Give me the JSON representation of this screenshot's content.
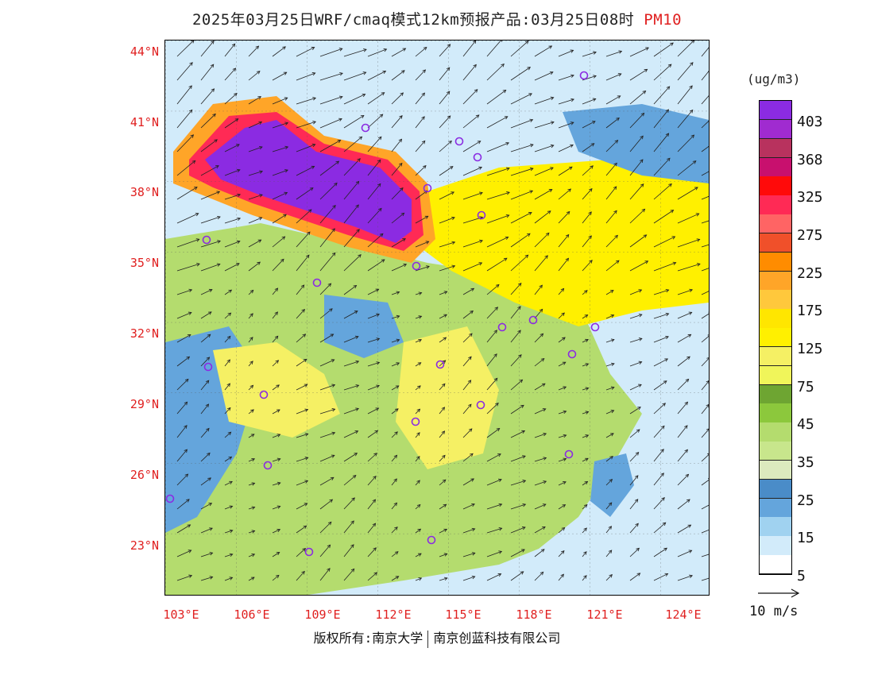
{
  "title": {
    "main": "2025年03月25日WRF/cmaq模式12km预报产品:03月25日08时",
    "species": "PM10"
  },
  "map": {
    "lat_labels": [
      "44°N",
      "41°N",
      "38°N",
      "35°N",
      "32°N",
      "29°N",
      "26°N",
      "23°N"
    ],
    "lon_labels": [
      "103°E",
      "106°E",
      "109°E",
      "112°E",
      "115°E",
      "118°E",
      "121°E",
      "124°E"
    ],
    "wind_flow": "southwest flow, stronger near the northern region",
    "station_marker": "purple-circle"
  },
  "colorbar": {
    "unit": "(ug/m3)",
    "levels": [
      {
        "color": "#8b2be2"
      },
      {
        "color": "#a02bd0"
      },
      {
        "color": "#b8325e"
      },
      {
        "color": "#c8106e"
      },
      {
        "color": "#ff0a0a"
      },
      {
        "color": "#ff2a55"
      },
      {
        "color": "#ff6464"
      },
      {
        "color": "#f0502a"
      },
      {
        "color": "#ff8c00"
      },
      {
        "color": "#ffa528"
      },
      {
        "color": "#ffc83c"
      },
      {
        "color": "#ffe600"
      },
      {
        "color": "#fff000"
      },
      {
        "color": "#f5f064"
      },
      {
        "color": "#f0f55a"
      },
      {
        "color": "#6ea532"
      },
      {
        "color": "#8cc83c"
      },
      {
        "color": "#b4dc6e"
      },
      {
        "color": "#c8e68c"
      },
      {
        "color": "#dceabe"
      },
      {
        "color": "#4a8cc8"
      },
      {
        "color": "#64a5dc"
      },
      {
        "color": "#a0d2f0"
      },
      {
        "color": "#d2ebfa"
      },
      {
        "color": "#ffffff"
      }
    ],
    "tick_labels": [
      "403",
      "368",
      "325",
      "275",
      "225",
      "175",
      "125",
      "75",
      "45",
      "35",
      "25",
      "15",
      "5"
    ]
  },
  "wind_reference": {
    "label": "10 m/s"
  },
  "copyright": {
    "left": "版权所有:南京大学",
    "right": "南京创蓝科技有限公司"
  },
  "colors": {
    "label_red": "#e02020",
    "extreme_purple": "#8b2be2",
    "high_red": "#ff2a55",
    "mid_yellow": "#fff000",
    "green": "#8cc83c",
    "blue": "#64a5dc",
    "light_blue": "#d2ebfa"
  }
}
